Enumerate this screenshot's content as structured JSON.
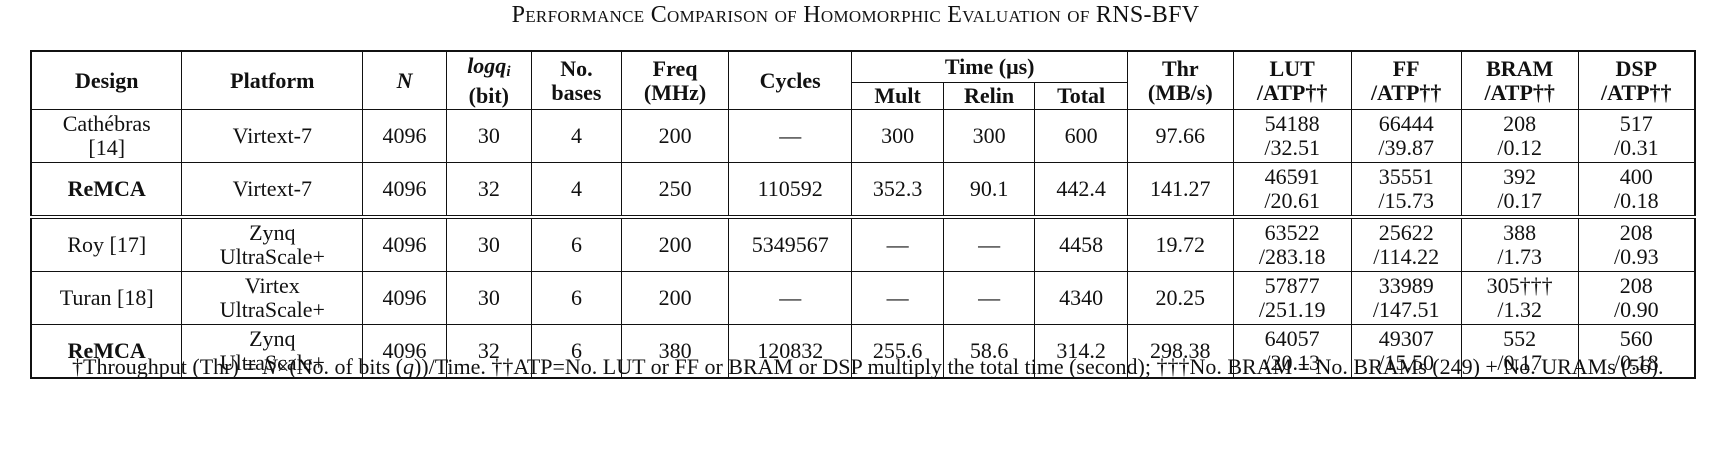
{
  "caption": "Performance Comparison of Homomorphic Evaluation of RNS-BFV",
  "headers": {
    "design": "Design",
    "platform": "Platform",
    "n": "N",
    "logq_main": "logq",
    "logq_sub": "i",
    "logq_unit": "(bit)",
    "bases_1": "No.",
    "bases_2": "bases",
    "freq_1": "Freq",
    "freq_2": "(MHz)",
    "cycles": "Cycles",
    "time": "Time (μs)",
    "mult": "Mult",
    "relin": "Relin",
    "total": "Total",
    "thr_1": "Thr",
    "thr_2": "(MB/s)",
    "lut_1": "LUT",
    "lut_2": "/ATP††",
    "ff_1": "FF",
    "ff_2": "/ATP††",
    "bram_1": "BRAM",
    "bram_2": "/ATP††",
    "dsp_1": "DSP",
    "dsp_2": "/ATP††"
  },
  "rows": [
    {
      "design_1": "Cathébras",
      "design_2": "[14]",
      "bold": false,
      "platform_1": "Virtext-7",
      "platform_2": "",
      "n": "4096",
      "logq": "30",
      "bases": "4",
      "freq": "200",
      "cycles": "—",
      "mult": "300",
      "relin": "300",
      "total": "600",
      "thr": "97.66",
      "lut_1": "54188",
      "lut_2": "/32.51",
      "ff_1": "66444",
      "ff_2": "/39.87",
      "bram_1": "208",
      "bram_2": "/0.12",
      "dsp_1": "517",
      "dsp_2": "/0.31"
    },
    {
      "design_1": "ReMCA",
      "design_2": "",
      "bold": true,
      "platform_1": "Virtext-7",
      "platform_2": "",
      "n": "4096",
      "logq": "32",
      "bases": "4",
      "freq": "250",
      "cycles": "110592",
      "mult": "352.3",
      "relin": "90.1",
      "total": "442.4",
      "thr": "141.27",
      "lut_1": "46591",
      "lut_2": "/20.61",
      "ff_1": "35551",
      "ff_2": "/15.73",
      "bram_1": "392",
      "bram_2": "/0.17",
      "dsp_1": "400",
      "dsp_2": "/0.18"
    },
    {
      "design_1": "Roy [17]",
      "design_2": "",
      "bold": false,
      "platform_1": "Zynq",
      "platform_2": "UltraScale+",
      "n": "4096",
      "logq": "30",
      "bases": "6",
      "freq": "200",
      "cycles": "5349567",
      "mult": "—",
      "relin": "—",
      "total": "4458",
      "thr": "19.72",
      "lut_1": "63522",
      "lut_2": "/283.18",
      "ff_1": "25622",
      "ff_2": "/114.22",
      "bram_1": "388",
      "bram_2": "/1.73",
      "dsp_1": "208",
      "dsp_2": "/0.93"
    },
    {
      "design_1": "Turan [18]",
      "design_2": "",
      "bold": false,
      "platform_1": "Virtex",
      "platform_2": "UltraScale+",
      "n": "4096",
      "logq": "30",
      "bases": "6",
      "freq": "200",
      "cycles": "—",
      "mult": "—",
      "relin": "—",
      "total": "4340",
      "thr": "20.25",
      "lut_1": "57877",
      "lut_2": "/251.19",
      "ff_1": "33989",
      "ff_2": "/147.51",
      "bram_1": "305†††",
      "bram_2": "/1.32",
      "dsp_1": "208",
      "dsp_2": "/0.90"
    },
    {
      "design_1": "ReMCA",
      "design_2": "",
      "bold": true,
      "platform_1": "Zynq",
      "platform_2": "UltraScale+",
      "n": "4096",
      "logq": "32",
      "bases": "6",
      "freq": "380",
      "cycles": "120832",
      "mult": "255.6",
      "relin": "58.6",
      "total": "314.2",
      "thr": "298.38",
      "lut_1": "64057",
      "lut_2": "/20.13",
      "ff_1": "49307",
      "ff_2": "/15.50",
      "bram_1": "552",
      "bram_2": "/0.17",
      "dsp_1": "560",
      "dsp_2": "/0.18"
    }
  ],
  "note": {
    "part1": "†Throughput (Thr) = ",
    "n": "N",
    "part2": "×(No. of bits (",
    "q": "q",
    "part3": "))/Time. ††ATP=No. LUT or FF or BRAM or DSP multiply the total time (second); †††No. BRAM = No. BRAMs (249) + No. URAMs (56)."
  }
}
